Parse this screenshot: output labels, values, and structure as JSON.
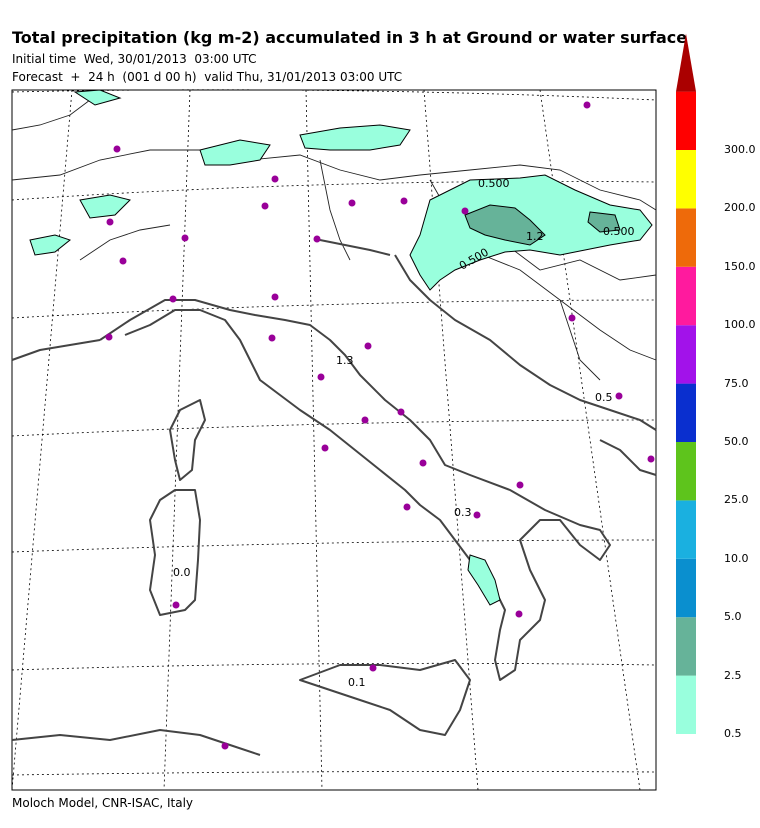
{
  "header": {
    "title": "Total precipitation (kg m-2) accumulated in   3 h at Ground or water surface",
    "initial_time": "Initial time  Wed, 30/01/2013  03:00 UTC",
    "forecast": "Forecast  +  24 h  (001 d 00 h)  valid Thu, 31/01/2013 03:00 UTC"
  },
  "footer": {
    "credit": "Moloch Model, CNR-ISAC, Italy"
  },
  "map_labels": {
    "l1": "0.500",
    "l2": "1.2",
    "l3": "0.500",
    "l4": "0.500",
    "l5": "1.3",
    "l6": "0.5",
    "l7": "0.3",
    "l8": "0.0",
    "l9": "0.1"
  },
  "colorbar": {
    "levels": [
      "0.5",
      "2.5",
      "5.0",
      "10.0",
      "25.0",
      "50.0",
      "75.0",
      "100.0",
      "150.0",
      "200.0",
      "300.0"
    ],
    "colors": [
      "#99ffdd",
      "#66b399",
      "#0a8fcf",
      "#1ab0e0",
      "#5ec41c",
      "#0a2fcf",
      "#a212ea",
      "#ff1a9e",
      "#ee6a0a",
      "#ffff00",
      "#ff0000"
    ],
    "top_color": "#aa0000"
  }
}
